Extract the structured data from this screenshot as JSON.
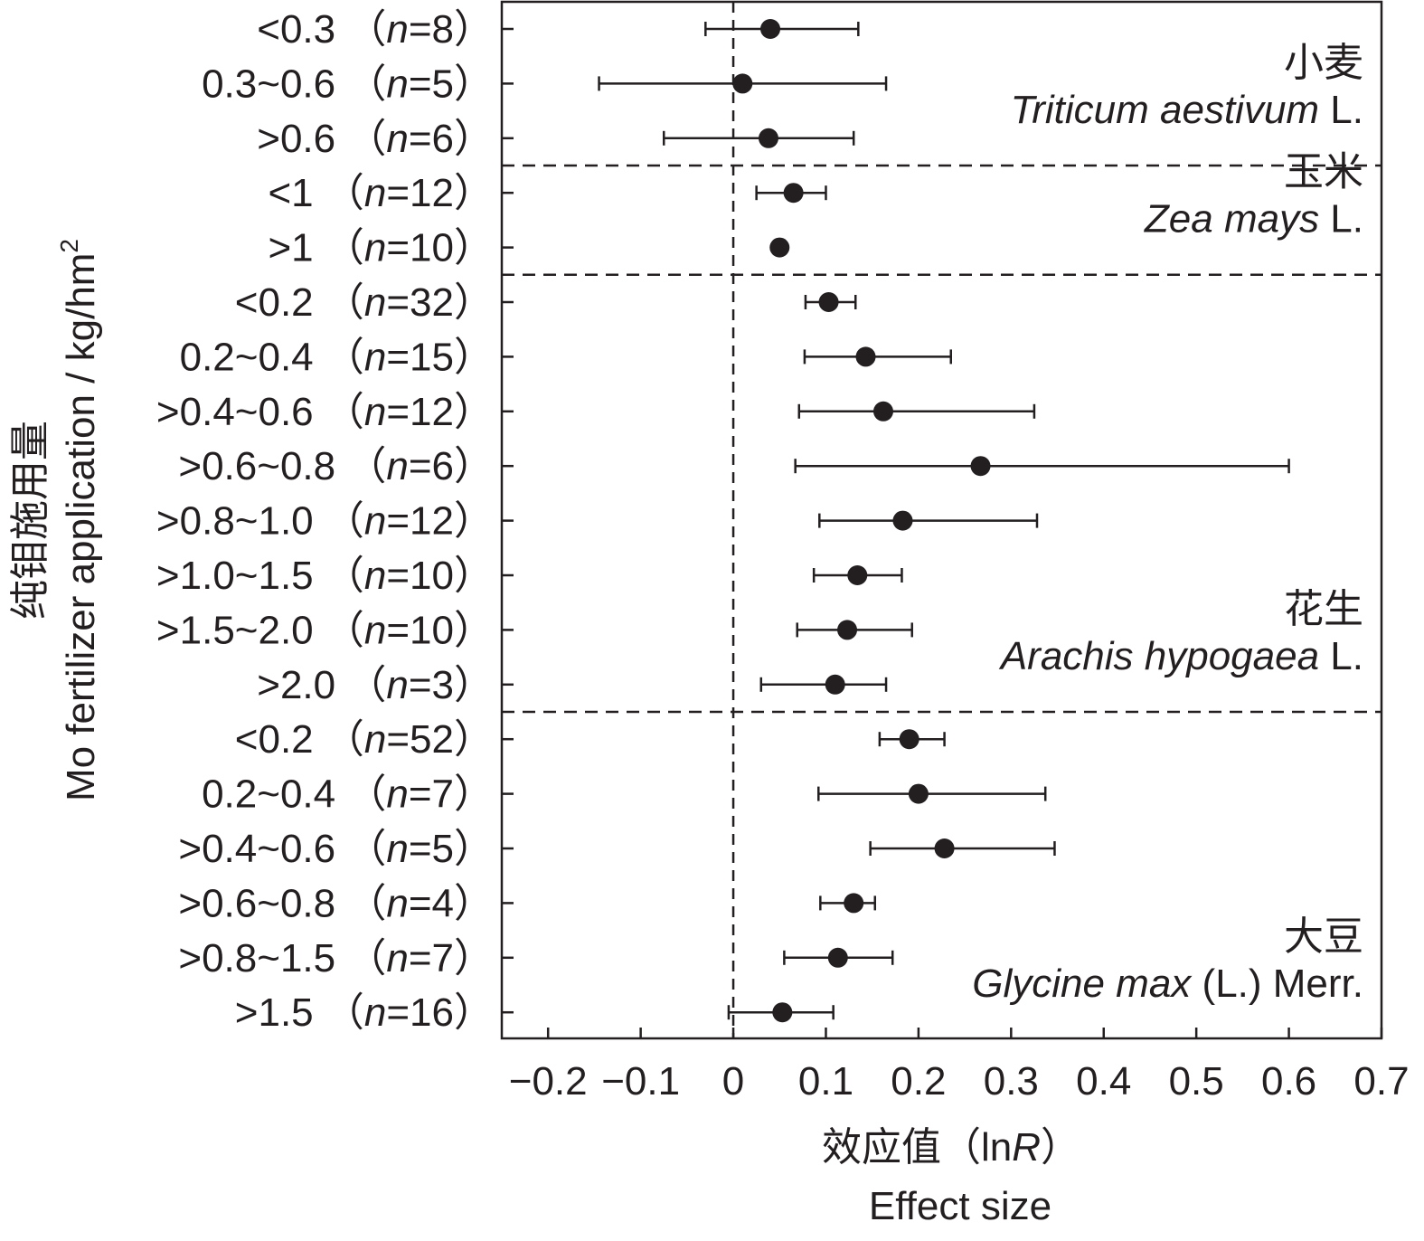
{
  "chart_data": {
    "type": "scatter",
    "subtype": "forest-plot",
    "xlabel_cn": "效应值（",
    "xlabel_ln": "ln",
    "xlabel_R": "R",
    "xlabel_close": "）",
    "xlabel_en": "Effect size",
    "ylabel_cn": "纯钼施用量",
    "ylabel_en": "Mo fertilizer application / kg/hm",
    "ylabel_sup": "2",
    "xlim": [
      -0.25,
      0.7
    ],
    "xticks": [
      -0.2,
      -0.1,
      0,
      0.1,
      0.2,
      0.3,
      0.4,
      0.5,
      0.6,
      0.7
    ],
    "xtick_labels": [
      "−0.2",
      "−0.1",
      "0",
      "0.1",
      "0.2",
      "0.3",
      "0.4",
      "0.5",
      "0.6",
      "0.7"
    ],
    "reference_line": 0,
    "groups": [
      {
        "name_cn": "小麦",
        "name_latin_italic": "Triticum aestivum",
        "name_latin_regular": " L.",
        "rows": [
          {
            "label": "<0.3",
            "n": "8",
            "mean": 0.04,
            "ci": [
              -0.03,
              0.135
            ]
          },
          {
            "label": "0.3~0.6",
            "n": "5",
            "mean": 0.01,
            "ci": [
              -0.145,
              0.165
            ]
          },
          {
            "label": ">0.6",
            "n": "6",
            "mean": 0.038,
            "ci": [
              -0.075,
              0.13
            ]
          }
        ]
      },
      {
        "name_cn": "玉米",
        "name_latin_italic": "Zea mays",
        "name_latin_regular": " L.",
        "rows": [
          {
            "label": "<1",
            "n": "12",
            "mean": 0.065,
            "ci": [
              0.025,
              0.1
            ]
          },
          {
            "label": ">1",
            "n": "10",
            "mean": 0.05,
            "ci": [
              0.05,
              0.05
            ]
          }
        ]
      },
      {
        "name_cn": "花生",
        "name_latin_italic": "Arachis hypogaea",
        "name_latin_regular": " L.",
        "rows": [
          {
            "label": "<0.2",
            "n": "32",
            "mean": 0.103,
            "ci": [
              0.078,
              0.132
            ]
          },
          {
            "label": "0.2~0.4",
            "n": "15",
            "mean": 0.143,
            "ci": [
              0.077,
              0.235
            ]
          },
          {
            "label": ">0.4~0.6",
            "n": "12",
            "mean": 0.162,
            "ci": [
              0.071,
              0.325
            ]
          },
          {
            "label": ">0.6~0.8",
            "n": "6",
            "mean": 0.267,
            "ci": [
              0.067,
              0.6
            ]
          },
          {
            "label": ">0.8~1.0",
            "n": "12",
            "mean": 0.183,
            "ci": [
              0.093,
              0.328
            ]
          },
          {
            "label": ">1.0~1.5",
            "n": "10",
            "mean": 0.134,
            "ci": [
              0.087,
              0.182
            ]
          },
          {
            "label": ">1.5~2.0",
            "n": "10",
            "mean": 0.123,
            "ci": [
              0.069,
              0.193
            ]
          },
          {
            "label": ">2.0",
            "n": "3",
            "mean": 0.11,
            "ci": [
              0.03,
              0.165
            ]
          }
        ]
      },
      {
        "name_cn": "大豆",
        "name_latin_italic": "Glycine max",
        "name_latin_regular": " (L.) Merr.",
        "rows": [
          {
            "label": "<0.2",
            "n": "52",
            "mean": 0.19,
            "ci": [
              0.158,
              0.228
            ]
          },
          {
            "label": "0.2~0.4",
            "n": "7",
            "mean": 0.2,
            "ci": [
              0.092,
              0.337
            ]
          },
          {
            "label": ">0.4~0.6",
            "n": "5",
            "mean": 0.228,
            "ci": [
              0.148,
              0.347
            ]
          },
          {
            "label": ">0.6~0.8",
            "n": "4",
            "mean": 0.13,
            "ci": [
              0.094,
              0.153
            ]
          },
          {
            "label": ">0.8~1.5",
            "n": "7",
            "mean": 0.113,
            "ci": [
              0.055,
              0.172
            ]
          },
          {
            "label": ">1.5",
            "n": "16",
            "mean": 0.053,
            "ci": [
              -0.005,
              0.108
            ]
          }
        ]
      }
    ]
  }
}
